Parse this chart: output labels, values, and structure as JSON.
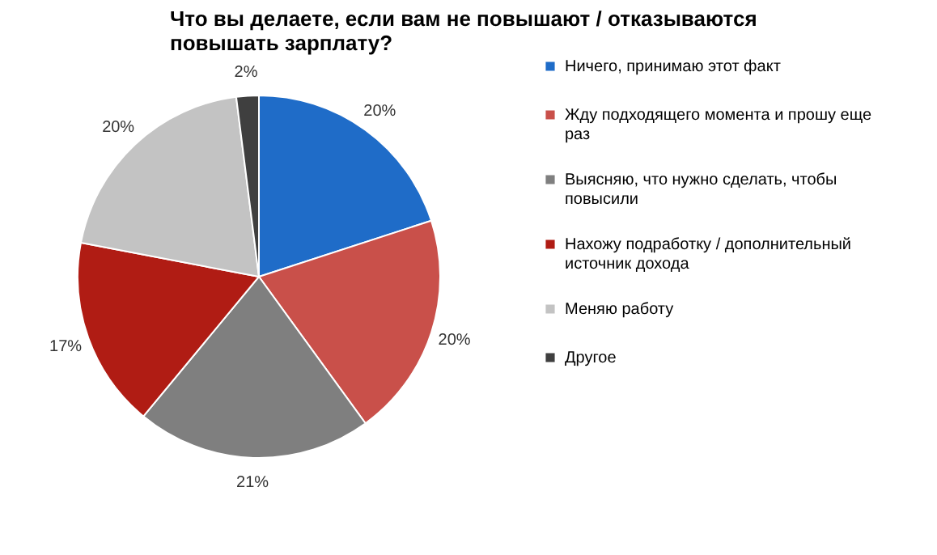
{
  "chart_data": {
    "type": "pie",
    "title": "Что вы делаете, если вам не повышают / отказываются повышать зарплату?",
    "categories": [
      "Ничего, принимаю этот факт",
      "Жду подходящего момента и прошу еще раз",
      "Выясняю, что нужно сделать, чтобы повысили",
      "Нахожу подработку / дополнительный источник дохода",
      "Меняю работу",
      "Другое"
    ],
    "values": [
      20,
      20,
      21,
      17,
      20,
      2
    ],
    "colors": [
      "#1f6cc8",
      "#c9504a",
      "#7f7f7f",
      "#b01c14",
      "#c3c3c3",
      "#3f3f3f"
    ],
    "value_labels": [
      "20%",
      "20%",
      "21%",
      "17%",
      "20%",
      "2%"
    ],
    "legend": "right"
  }
}
